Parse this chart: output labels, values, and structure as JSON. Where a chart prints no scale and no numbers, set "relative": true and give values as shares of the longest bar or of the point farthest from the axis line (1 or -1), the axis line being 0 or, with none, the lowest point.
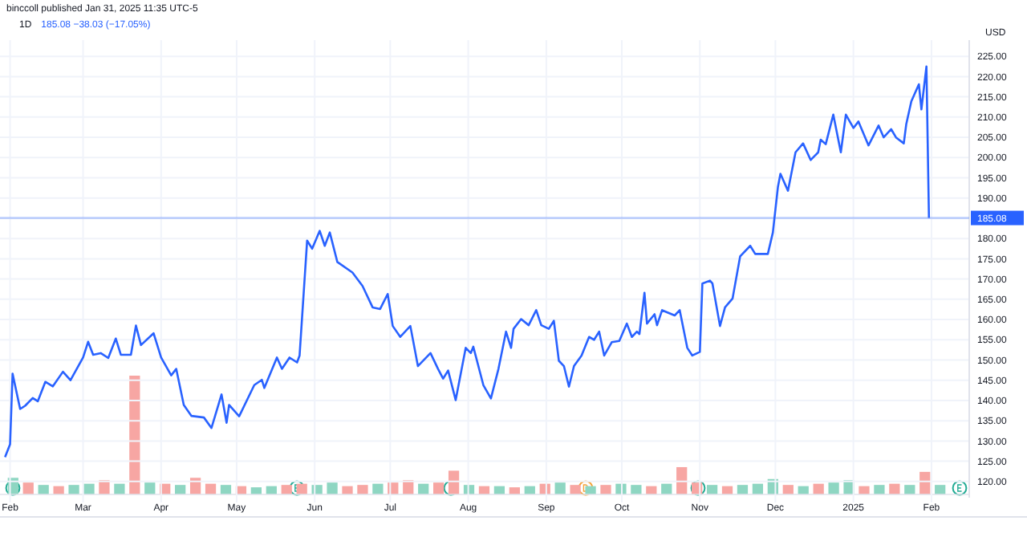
{
  "chart_data": [
    {
      "type": "line",
      "title": "1D",
      "subtitle": "185.08 −38.03 (−17.05%)",
      "ylabel": "USD",
      "annotations": [
        "binccoll published Jan 31, 2025 11:35 UTC-5"
      ],
      "color": "#2962ff",
      "grid": true,
      "marker": "none",
      "line_style": "solid",
      "xlim": [
        "2024-01-28",
        "2025-02-16"
      ],
      "xticks": [
        {
          "value": "2024-02-01",
          "label": "Feb"
        },
        {
          "value": "2024-03-01",
          "label": "Mar"
        },
        {
          "value": "2024-04-01",
          "label": "Apr"
        },
        {
          "value": "2024-05-01",
          "label": "May"
        },
        {
          "value": "2024-06-01",
          "label": "Jun"
        },
        {
          "value": "2024-07-01",
          "label": "Jul"
        },
        {
          "value": "2024-08-01",
          "label": "Aug"
        },
        {
          "value": "2024-09-01",
          "label": "Sep"
        },
        {
          "value": "2024-10-01",
          "label": "Oct"
        },
        {
          "value": "2024-11-01",
          "label": "Nov"
        },
        {
          "value": "2024-12-01",
          "label": "Dec"
        },
        {
          "value": "2025-01-01",
          "label": "2025"
        },
        {
          "value": "2025-02-01",
          "label": "Feb"
        }
      ],
      "ylim": [
        116,
        229
      ],
      "yticks": [
        {
          "value": 120,
          "label": "120.00"
        },
        {
          "value": 125,
          "label": "125.00"
        },
        {
          "value": 130,
          "label": "130.00"
        },
        {
          "value": 135,
          "label": "135.00"
        },
        {
          "value": 140,
          "label": "140.00"
        },
        {
          "value": 145,
          "label": "145.00"
        },
        {
          "value": 150,
          "label": "150.00"
        },
        {
          "value": 155,
          "label": "155.00"
        },
        {
          "value": 160,
          "label": "160.00"
        },
        {
          "value": 165,
          "label": "165.00"
        },
        {
          "value": 170,
          "label": "170.00"
        },
        {
          "value": 175,
          "label": "175.00"
        },
        {
          "value": 180,
          "label": "180.00"
        },
        {
          "value": 185,
          "label": null
        },
        {
          "value": 190,
          "label": "190.00"
        },
        {
          "value": 195,
          "label": "195.00"
        },
        {
          "value": 200,
          "label": "200.00"
        },
        {
          "value": 205,
          "label": "205.00"
        },
        {
          "value": 210,
          "label": "210.00"
        },
        {
          "value": 215,
          "label": "215.00"
        },
        {
          "value": 220,
          "label": "220.00"
        },
        {
          "value": 225,
          "label": "225.00"
        }
      ],
      "ref_lines": [
        {
          "axis": "y",
          "value": 185.08,
          "label": "185.08",
          "color": "#2962ff"
        }
      ],
      "x": [
        "2024-01-30",
        "2024-02-01",
        "2024-02-02",
        "2024-02-05",
        "2024-02-07",
        "2024-02-10",
        "2024-02-12",
        "2024-02-15",
        "2024-02-18",
        "2024-02-22",
        "2024-02-25",
        "2024-03-01",
        "2024-03-03",
        "2024-03-05",
        "2024-03-08",
        "2024-03-11",
        "2024-03-14",
        "2024-03-16",
        "2024-03-20",
        "2024-03-22",
        "2024-03-24",
        "2024-03-29",
        "2024-04-01",
        "2024-04-05",
        "2024-04-07",
        "2024-04-10",
        "2024-04-13",
        "2024-04-18",
        "2024-04-21",
        "2024-04-25",
        "2024-04-27",
        "2024-04-28",
        "2024-05-02",
        "2024-05-08",
        "2024-05-11",
        "2024-05-12",
        "2024-05-17",
        "2024-05-19",
        "2024-05-22",
        "2024-05-25",
        "2024-05-26",
        "2024-05-29",
        "2024-05-31",
        "2024-06-03",
        "2024-06-05",
        "2024-06-07",
        "2024-06-10",
        "2024-06-16",
        "2024-06-20",
        "2024-06-24",
        "2024-06-27",
        "2024-06-30",
        "2024-07-02",
        "2024-07-05",
        "2024-07-09",
        "2024-07-12",
        "2024-07-17",
        "2024-07-20",
        "2024-07-22",
        "2024-07-24",
        "2024-07-27",
        "2024-07-31",
        "2024-08-02",
        "2024-08-03",
        "2024-08-07",
        "2024-08-10",
        "2024-08-13",
        "2024-08-16",
        "2024-08-18",
        "2024-08-19",
        "2024-08-22",
        "2024-08-25",
        "2024-08-28",
        "2024-08-30",
        "2024-09-02",
        "2024-09-04",
        "2024-09-06",
        "2024-09-08",
        "2024-09-10",
        "2024-09-12",
        "2024-09-15",
        "2024-09-18",
        "2024-09-20",
        "2024-09-22",
        "2024-09-24",
        "2024-09-27",
        "2024-09-30",
        "2024-10-03",
        "2024-10-05",
        "2024-10-07",
        "2024-10-08",
        "2024-10-10",
        "2024-10-11",
        "2024-10-14",
        "2024-10-15",
        "2024-10-17",
        "2024-10-22",
        "2024-10-24",
        "2024-10-27",
        "2024-10-29",
        "2024-11-01",
        "2024-11-02",
        "2024-11-05",
        "2024-11-06",
        "2024-11-09",
        "2024-11-11",
        "2024-11-14",
        "2024-11-17",
        "2024-11-21",
        "2024-11-23",
        "2024-11-26",
        "2024-11-28",
        "2024-11-30",
        "2024-12-02",
        "2024-12-03",
        "2024-12-06",
        "2024-12-09",
        "2024-12-12",
        "2024-12-15",
        "2024-12-18",
        "2024-12-19",
        "2024-12-21",
        "2024-12-24",
        "2024-12-27",
        "2024-12-29",
        "2025-01-01",
        "2025-01-03",
        "2025-01-07",
        "2025-01-11",
        "2025-01-13",
        "2025-01-16",
        "2025-01-18",
        "2025-01-21",
        "2025-01-22",
        "2025-01-24",
        "2025-01-27",
        "2025-01-28",
        "2025-01-30",
        "2025-01-31"
      ],
      "values": [
        126,
        129.2,
        146.6,
        137.9,
        138.7,
        140.6,
        139.8,
        144.6,
        143.5,
        147.1,
        145,
        150.6,
        154.5,
        151.3,
        151.7,
        150.5,
        155.3,
        151.3,
        151.3,
        158.5,
        153.7,
        156.6,
        150.6,
        146.2,
        147.8,
        138.9,
        136.2,
        135.8,
        133.2,
        141.5,
        134.5,
        138.9,
        136.1,
        143.8,
        145.1,
        143.1,
        150.6,
        147.8,
        150.6,
        149.4,
        151.1,
        179.5,
        177.5,
        181.9,
        178.2,
        181.5,
        174.2,
        171.6,
        168.3,
        163,
        162.6,
        166.3,
        158.4,
        155.7,
        158.4,
        148.5,
        151.7,
        147.8,
        145.4,
        147.4,
        140.1,
        153,
        151.7,
        153.3,
        143.8,
        140.5,
        147.8,
        157,
        153,
        157.7,
        160.1,
        158.6,
        162.3,
        158.6,
        157.7,
        159.7,
        149.8,
        148.5,
        143.4,
        148.5,
        151.1,
        155.7,
        155,
        157,
        151.1,
        154.4,
        154.7,
        159,
        155.7,
        157,
        156.4,
        166.6,
        159,
        161.3,
        158.6,
        162.3,
        161,
        162.3,
        153,
        151.1,
        152,
        168.9,
        169.6,
        168.9,
        158.4,
        163,
        165.2,
        175.6,
        178.2,
        176.2,
        176.2,
        176.2,
        181.5,
        192.7,
        196,
        191.8,
        201.3,
        203.5,
        199.4,
        201.3,
        204.4,
        203.3,
        210.6,
        201.3,
        210.6,
        207.3,
        208.9,
        203,
        207.9,
        205,
        207,
        204.9,
        203.5,
        208.3,
        213.9,
        218.1,
        211.9,
        222.5,
        185.08
      ]
    },
    {
      "type": "bar",
      "relative": true,
      "categories": [
        null,
        null,
        null,
        null,
        null,
        null,
        null,
        null,
        null,
        null,
        null,
        null,
        null,
        null,
        null,
        null,
        null,
        null,
        null,
        null,
        null,
        null,
        null,
        null,
        null,
        null,
        null,
        null,
        null,
        null,
        null,
        null,
        null,
        null,
        null,
        null,
        null,
        null,
        null,
        null,
        null,
        null,
        null,
        null,
        null,
        null,
        null,
        null,
        null,
        null,
        null,
        null,
        null,
        null,
        null,
        null,
        null,
        null,
        null,
        null,
        null,
        null
      ],
      "values": [
        0.14,
        0.1,
        0.08,
        0.07,
        0.08,
        0.09,
        0.12,
        0.09,
        1.0,
        0.1,
        0.09,
        0.08,
        0.14,
        0.09,
        0.08,
        0.07,
        0.06,
        0.07,
        0.08,
        0.09,
        0.08,
        0.1,
        0.07,
        0.08,
        0.09,
        0.1,
        0.12,
        0.09,
        0.1,
        0.2,
        0.08,
        0.07,
        0.07,
        0.06,
        0.07,
        0.09,
        0.1,
        0.08,
        0.07,
        0.08,
        0.09,
        0.08,
        0.07,
        0.09,
        0.23,
        0.1,
        0.08,
        0.07,
        0.08,
        0.09,
        0.13,
        0.08,
        0.07,
        0.09,
        0.1,
        0.12,
        0.07,
        0.08,
        0.09,
        0.08,
        0.19,
        0.08
      ],
      "colors": [
        "#8ed6c2",
        "#f7a6a3",
        "#8ed6c2",
        "#f7a6a3",
        "#8ed6c2",
        "#8ed6c2",
        "#f7a6a3",
        "#8ed6c2",
        "#f7a6a3",
        "#8ed6c2",
        "#f7a6a3",
        "#8ed6c2",
        "#f7a6a3",
        "#f7a6a3",
        "#8ed6c2",
        "#f7a6a3",
        "#8ed6c2",
        "#8ed6c2",
        "#f7a6a3",
        "#f7a6a3",
        "#8ed6c2",
        "#8ed6c2",
        "#f7a6a3",
        "#f7a6a3",
        "#8ed6c2",
        "#f7a6a3",
        "#f7a6a3",
        "#8ed6c2",
        "#f7a6a3",
        "#f7a6a3",
        "#8ed6c2",
        "#f7a6a3",
        "#8ed6c2",
        "#f7a6a3",
        "#8ed6c2",
        "#f7a6a3",
        "#8ed6c2",
        "#f7a6a3",
        "#8ed6c2",
        "#f7a6a3",
        "#8ed6c2",
        "#8ed6c2",
        "#f7a6a3",
        "#8ed6c2",
        "#f7a6a3",
        "#f7a6a3",
        "#8ed6c2",
        "#f7a6a3",
        "#8ed6c2",
        "#8ed6c2",
        "#8ed6c2",
        "#f7a6a3",
        "#8ed6c2",
        "#f7a6a3",
        "#8ed6c2",
        "#8ed6c2",
        "#f7a6a3",
        "#8ed6c2",
        "#f7a6a3",
        "#8ed6c2",
        "#f7a6a3",
        "#8ed6c2"
      ]
    }
  ]
}
